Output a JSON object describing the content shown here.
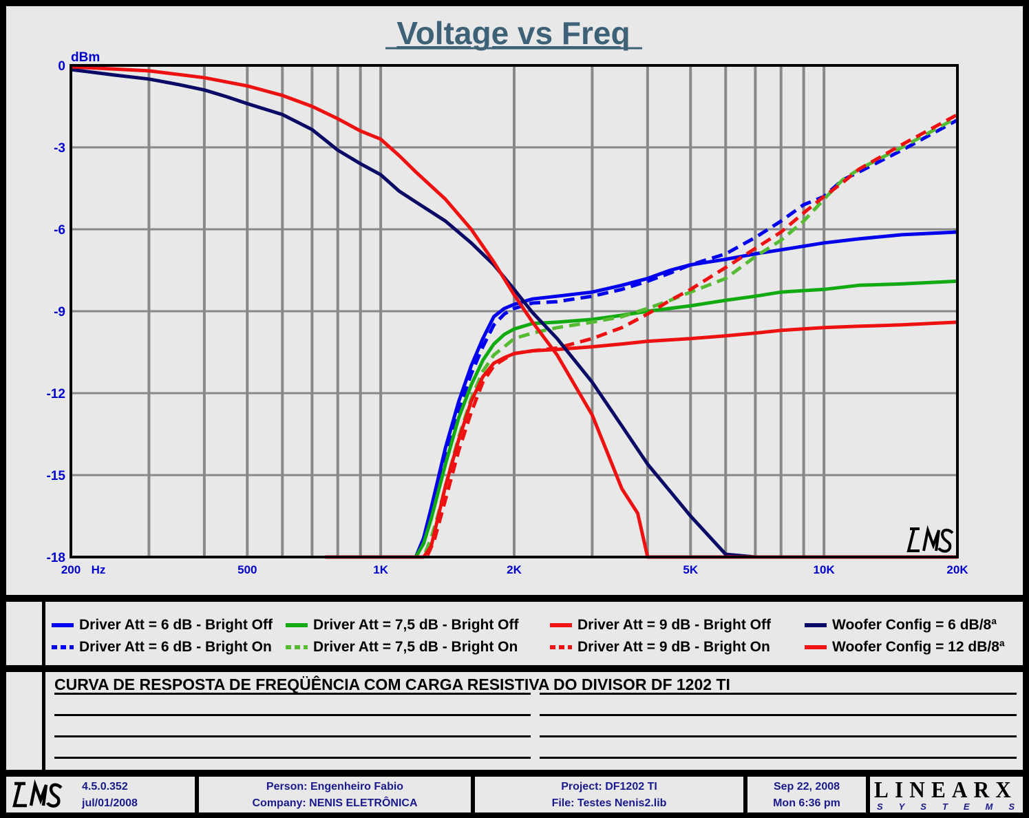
{
  "chart_data": {
    "type": "line",
    "title": "Voltage vs Freq",
    "ylabel": "dBm",
    "xlabel": "Hz",
    "xscale": "log",
    "xlim": [
      200,
      20000
    ],
    "ylim": [
      -18,
      0
    ],
    "yticks": [
      0,
      -3,
      -6,
      -9,
      -12,
      -15,
      -18
    ],
    "ytick_labels": [
      "0",
      "-3",
      "-6",
      "-9",
      "-12",
      "-15",
      "-18"
    ],
    "xticks": [
      200,
      500,
      1000,
      2000,
      5000,
      10000,
      20000
    ],
    "xtick_labels": [
      "200",
      "500",
      "1K",
      "2K",
      "5K",
      "10K",
      "20K"
    ],
    "x_unit_label": "Hz",
    "grid": true,
    "watermark": "LMS",
    "series": [
      {
        "name": "Driver Att = 6 dB - Bright Off",
        "color": "#0000ee",
        "dash": false,
        "points": [
          [
            750,
            -18
          ],
          [
            1200,
            -18
          ],
          [
            1250,
            -17.3
          ],
          [
            1300,
            -16.2
          ],
          [
            1400,
            -14
          ],
          [
            1500,
            -12.3
          ],
          [
            1600,
            -11
          ],
          [
            1700,
            -10
          ],
          [
            1800,
            -9.2
          ],
          [
            1900,
            -8.9
          ],
          [
            2000,
            -8.75
          ],
          [
            2200,
            -8.55
          ],
          [
            2500,
            -8.45
          ],
          [
            3000,
            -8.3
          ],
          [
            3500,
            -8.05
          ],
          [
            4000,
            -7.8
          ],
          [
            4500,
            -7.5
          ],
          [
            5000,
            -7.3
          ],
          [
            6000,
            -7.1
          ],
          [
            7000,
            -6.9
          ],
          [
            8000,
            -6.75
          ],
          [
            10000,
            -6.5
          ],
          [
            12000,
            -6.35
          ],
          [
            15000,
            -6.2
          ],
          [
            20000,
            -6.1
          ]
        ]
      },
      {
        "name": "Driver Att = 6 dB - Bright On",
        "color": "#0000ee",
        "dash": true,
        "points": [
          [
            750,
            -18
          ],
          [
            1200,
            -18
          ],
          [
            1250,
            -17.5
          ],
          [
            1300,
            -16.5
          ],
          [
            1400,
            -14.3
          ],
          [
            1500,
            -12.6
          ],
          [
            1600,
            -11.3
          ],
          [
            1700,
            -10.3
          ],
          [
            1800,
            -9.5
          ],
          [
            1900,
            -9.1
          ],
          [
            2000,
            -8.9
          ],
          [
            2200,
            -8.7
          ],
          [
            2500,
            -8.65
          ],
          [
            3000,
            -8.45
          ],
          [
            3500,
            -8.2
          ],
          [
            4000,
            -7.9
          ],
          [
            4500,
            -7.6
          ],
          [
            5000,
            -7.3
          ],
          [
            6000,
            -6.9
          ],
          [
            7000,
            -6.3
          ],
          [
            8000,
            -5.7
          ],
          [
            9000,
            -5.1
          ],
          [
            10000,
            -4.8
          ],
          [
            11000,
            -4.2
          ],
          [
            12000,
            -3.9
          ],
          [
            15000,
            -3.1
          ],
          [
            20000,
            -2.0
          ]
        ]
      },
      {
        "name": "Driver Att = 7,5 dB - Bright Off",
        "color": "#11aa11",
        "dash": false,
        "points": [
          [
            750,
            -18
          ],
          [
            1200,
            -18
          ],
          [
            1250,
            -17.5
          ],
          [
            1300,
            -16.6
          ],
          [
            1400,
            -14.6
          ],
          [
            1500,
            -12.9
          ],
          [
            1600,
            -11.7
          ],
          [
            1700,
            -10.8
          ],
          [
            1800,
            -10.2
          ],
          [
            1900,
            -9.85
          ],
          [
            2000,
            -9.65
          ],
          [
            2200,
            -9.45
          ],
          [
            2500,
            -9.4
          ],
          [
            3000,
            -9.3
          ],
          [
            3500,
            -9.15
          ],
          [
            4000,
            -9.0
          ],
          [
            5000,
            -8.8
          ],
          [
            6000,
            -8.6
          ],
          [
            7000,
            -8.45
          ],
          [
            8000,
            -8.3
          ],
          [
            10000,
            -8.2
          ],
          [
            12000,
            -8.05
          ],
          [
            15000,
            -8.0
          ],
          [
            20000,
            -7.9
          ]
        ]
      },
      {
        "name": "Driver Att = 7,5 dB - Bright On",
        "color": "#55bb33",
        "dash": true,
        "points": [
          [
            750,
            -18
          ],
          [
            1250,
            -18
          ],
          [
            1300,
            -17.3
          ],
          [
            1350,
            -16.4
          ],
          [
            1400,
            -15.4
          ],
          [
            1500,
            -13.6
          ],
          [
            1600,
            -12.2
          ],
          [
            1700,
            -11.2
          ],
          [
            1800,
            -10.6
          ],
          [
            1900,
            -10.3
          ],
          [
            2000,
            -10.0
          ],
          [
            2200,
            -9.8
          ],
          [
            2500,
            -9.6
          ],
          [
            3000,
            -9.4
          ],
          [
            3500,
            -9.2
          ],
          [
            4000,
            -8.9
          ],
          [
            4500,
            -8.6
          ],
          [
            5000,
            -8.3
          ],
          [
            6000,
            -7.8
          ],
          [
            7000,
            -7.0
          ],
          [
            8000,
            -6.4
          ],
          [
            9000,
            -5.7
          ],
          [
            10000,
            -4.9
          ],
          [
            11000,
            -4.2
          ],
          [
            12000,
            -3.8
          ],
          [
            15000,
            -3.0
          ],
          [
            20000,
            -1.9
          ]
        ]
      },
      {
        "name": "Driver Att = 9 dB - Bright Off",
        "color": "#ee1111",
        "dash": false,
        "points": [
          [
            750,
            -18
          ],
          [
            1250,
            -18
          ],
          [
            1300,
            -17.6
          ],
          [
            1400,
            -15.4
          ],
          [
            1500,
            -13.7
          ],
          [
            1600,
            -12.3
          ],
          [
            1700,
            -11.4
          ],
          [
            1800,
            -10.9
          ],
          [
            1900,
            -10.7
          ],
          [
            2000,
            -10.55
          ],
          [
            2200,
            -10.45
          ],
          [
            2500,
            -10.4
          ],
          [
            3000,
            -10.3
          ],
          [
            3500,
            -10.2
          ],
          [
            4000,
            -10.1
          ],
          [
            5000,
            -10.0
          ],
          [
            6000,
            -9.9
          ],
          [
            7000,
            -9.8
          ],
          [
            8000,
            -9.7
          ],
          [
            10000,
            -9.6
          ],
          [
            12000,
            -9.55
          ],
          [
            15000,
            -9.5
          ],
          [
            20000,
            -9.4
          ]
        ]
      },
      {
        "name": "Driver Att = 9 dB - Bright On",
        "color": "#ee1111",
        "dash": true,
        "points": [
          [
            750,
            -18
          ],
          [
            1270,
            -18
          ],
          [
            1320,
            -17.4
          ],
          [
            1400,
            -15.9
          ],
          [
            1500,
            -14.1
          ],
          [
            1600,
            -12.7
          ],
          [
            1700,
            -11.6
          ],
          [
            1800,
            -11.0
          ],
          [
            1900,
            -10.75
          ],
          [
            2000,
            -10.55
          ],
          [
            2200,
            -10.45
          ],
          [
            2500,
            -10.35
          ],
          [
            3000,
            -10.0
          ],
          [
            3500,
            -9.6
          ],
          [
            4000,
            -9.1
          ],
          [
            4500,
            -8.6
          ],
          [
            5000,
            -8.2
          ],
          [
            6000,
            -7.4
          ],
          [
            7000,
            -6.7
          ],
          [
            8000,
            -6.1
          ],
          [
            9000,
            -5.4
          ],
          [
            10000,
            -4.8
          ],
          [
            11000,
            -4.3
          ],
          [
            12000,
            -3.8
          ],
          [
            15000,
            -2.9
          ],
          [
            20000,
            -1.8
          ]
        ]
      },
      {
        "name": "Woofer Config = 6 dB/8ª",
        "color": "#0a0a66",
        "dash": false,
        "points": [
          [
            200,
            -0.15
          ],
          [
            250,
            -0.35
          ],
          [
            300,
            -0.5
          ],
          [
            350,
            -0.7
          ],
          [
            400,
            -0.9
          ],
          [
            450,
            -1.15
          ],
          [
            500,
            -1.4
          ],
          [
            600,
            -1.8
          ],
          [
            700,
            -2.35
          ],
          [
            800,
            -3.1
          ],
          [
            900,
            -3.6
          ],
          [
            1000,
            -4.0
          ],
          [
            1100,
            -4.6
          ],
          [
            1200,
            -5.0
          ],
          [
            1400,
            -5.7
          ],
          [
            1600,
            -6.5
          ],
          [
            1800,
            -7.3
          ],
          [
            2000,
            -8.2
          ],
          [
            2200,
            -9.05
          ],
          [
            2500,
            -10.0
          ],
          [
            3000,
            -11.6
          ],
          [
            3500,
            -13.2
          ],
          [
            4000,
            -14.6
          ],
          [
            4500,
            -15.6
          ],
          [
            5000,
            -16.5
          ],
          [
            6000,
            -17.9
          ],
          [
            7000,
            -18
          ],
          [
            20000,
            -18
          ]
        ]
      },
      {
        "name": "Woofer Config = 12 dB/8ª",
        "color": "#ee1111",
        "dash": false,
        "points": [
          [
            200,
            -0.05
          ],
          [
            300,
            -0.2
          ],
          [
            400,
            -0.45
          ],
          [
            500,
            -0.75
          ],
          [
            600,
            -1.1
          ],
          [
            700,
            -1.5
          ],
          [
            800,
            -1.95
          ],
          [
            900,
            -2.4
          ],
          [
            1000,
            -2.7
          ],
          [
            1100,
            -3.3
          ],
          [
            1200,
            -3.9
          ],
          [
            1400,
            -4.9
          ],
          [
            1600,
            -6.0
          ],
          [
            1800,
            -7.2
          ],
          [
            2000,
            -8.4
          ],
          [
            2200,
            -9.4
          ],
          [
            2500,
            -10.6
          ],
          [
            3000,
            -12.8
          ],
          [
            3500,
            -15.5
          ],
          [
            3800,
            -16.4
          ],
          [
            4000,
            -18
          ],
          [
            4500,
            -18
          ],
          [
            20000,
            -18
          ]
        ]
      }
    ]
  },
  "legend": {
    "items": [
      {
        "label": "Driver Att = 6 dB - Bright Off",
        "color": "#0000ee",
        "dash": false
      },
      {
        "label": "Driver Att = 6 dB - Bright On",
        "color": "#0000ee",
        "dash": true
      },
      {
        "label": "Driver Att = 7,5 dB - Bright Off",
        "color": "#11aa11",
        "dash": false
      },
      {
        "label": "Driver Att = 7,5 dB - Bright On",
        "color": "#55bb33",
        "dash": true
      },
      {
        "label": "Driver Att = 9 dB - Bright Off",
        "color": "#ee1111",
        "dash": false
      },
      {
        "label": "Driver Att = 9 dB - Bright On",
        "color": "#ee1111",
        "dash": true
      },
      {
        "label": "Woofer Config = 6 dB/8ª",
        "color": "#0a0a66",
        "dash": false
      },
      {
        "label": "Woofer Config = 12 dB/8ª",
        "color": "#ee1111",
        "dash": false
      }
    ]
  },
  "notes": {
    "text": "CURVA DE RESPOSTA DE FREQÜÊNCIA COM CARGA RESISTIVA DO DIVISOR DF 1202 TI"
  },
  "footer": {
    "logo": "LMS",
    "version": "4.5.0.352",
    "version_date": "jul/01/2008",
    "person": "Person: Engenheiro Fabio",
    "company": "Company: NENIS ELETRÔNICA",
    "project": "Project: DF1202 TI",
    "file": "File: Testes Nenis2.lib",
    "date": "Sep 22, 2008",
    "time": "Mon  6:36 pm",
    "brand_top": "LINEARX",
    "brand_bottom": "SYSTEMS"
  },
  "colors": {
    "panel": "#e8e8e8",
    "title": "#3d6278",
    "axis_labels": "#0000cc",
    "grid": "#888888",
    "footer_text": "#1a1a8c"
  }
}
